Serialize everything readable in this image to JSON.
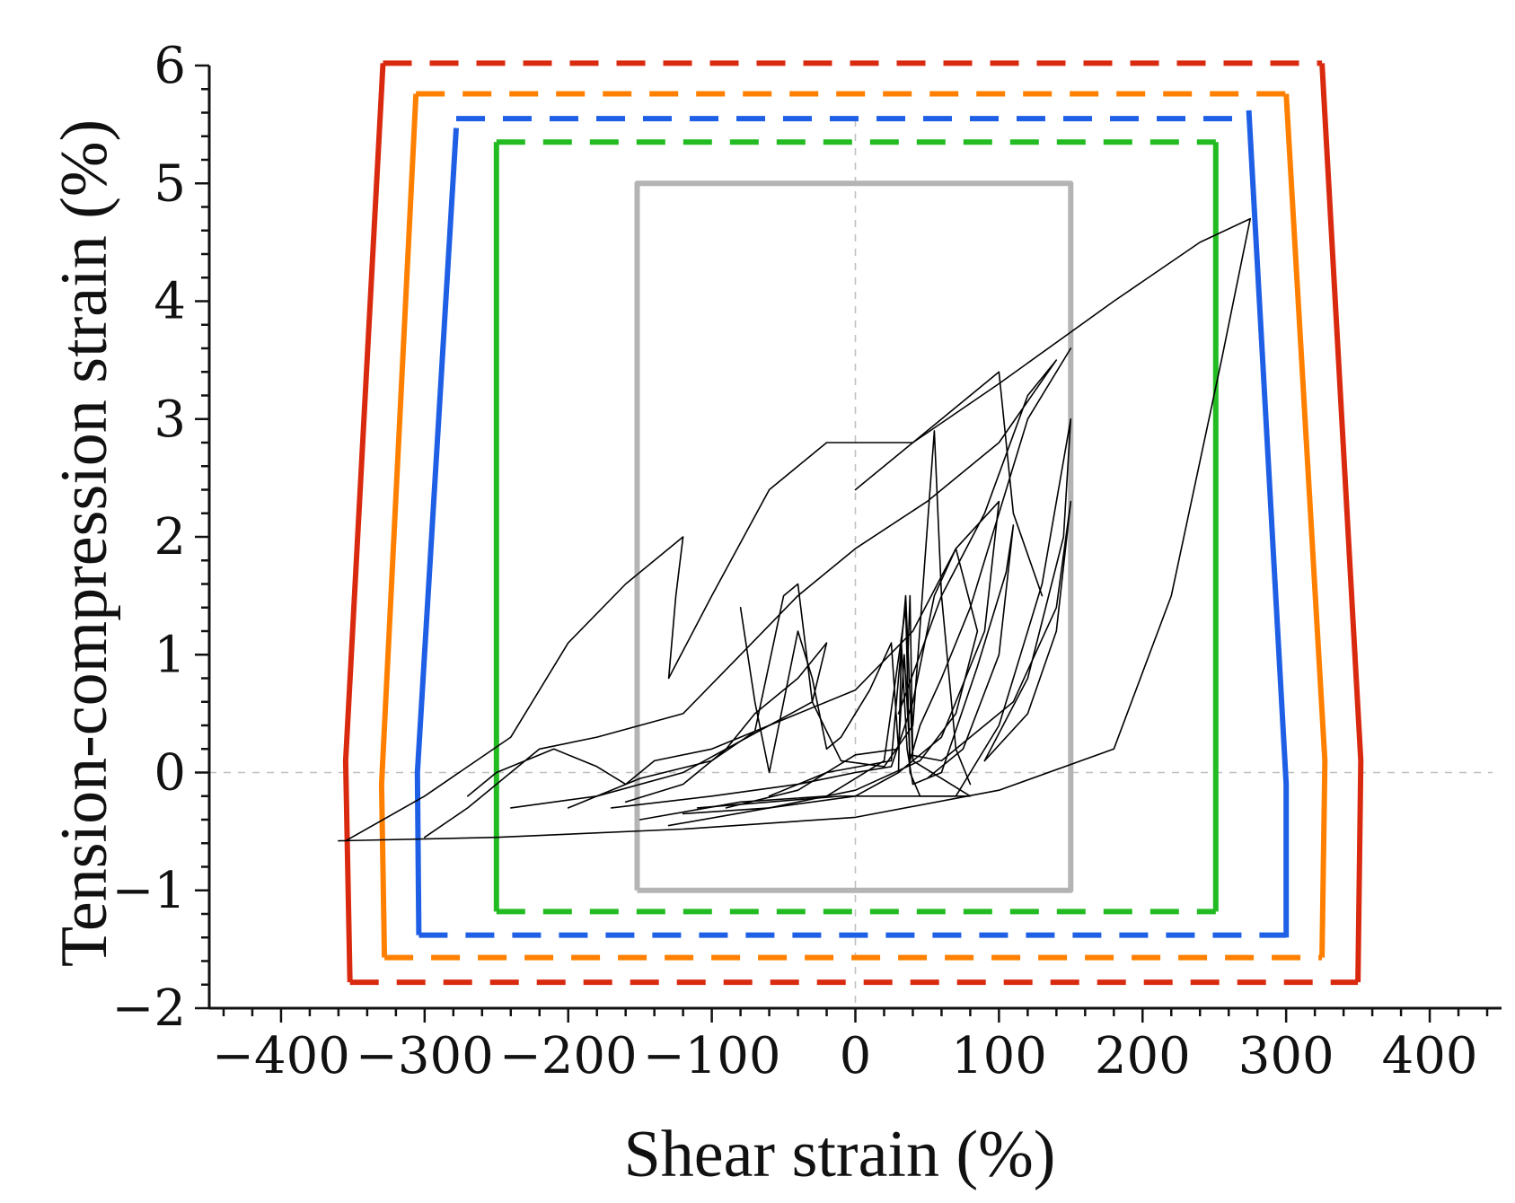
{
  "chart_data": {
    "type": "line",
    "title": "",
    "xlabel": "Shear strain (%)",
    "ylabel": "Tension-compression strain (%)",
    "xlim": [
      -450,
      450
    ],
    "ylim": [
      -2,
      6
    ],
    "grid": false,
    "x_ticks": [
      -400,
      -300,
      -200,
      -100,
      0,
      100,
      200,
      300,
      400
    ],
    "x_tick_labels": [
      "−400",
      "−300",
      "−200",
      "−100",
      "0",
      "100",
      "200",
      "300",
      "400"
    ],
    "y_ticks": [
      -2,
      -1,
      0,
      1,
      2,
      3,
      4,
      5,
      6
    ],
    "y_tick_labels": [
      "−2",
      "−1",
      "0",
      "1",
      "2",
      "3",
      "4",
      "5",
      "6"
    ],
    "reference_lines": [
      {
        "orientation": "vertical",
        "value": 0,
        "style": "dashed",
        "color": "#c0c0c0"
      },
      {
        "orientation": "horizontal",
        "value": 0,
        "style": "dashed",
        "color": "#c0c0c0"
      }
    ],
    "series": [
      {
        "name": "boundary-red",
        "color": "#d92a10",
        "solid_segments": [
          [
            [
              -352,
              -1.78
            ],
            [
              -355,
              0.1
            ],
            [
              -329,
              6.02
            ]
          ],
          [
            [
              325,
              6.02
            ],
            [
              352,
              0.1
            ],
            [
              350,
              -1.78
            ]
          ]
        ],
        "dashed_segments": [
          [
            [
              -329,
              6.02
            ],
            [
              325,
              6.02
            ]
          ],
          [
            [
              -352,
              -1.78
            ],
            [
              350,
              -1.78
            ]
          ]
        ]
      },
      {
        "name": "boundary-orange",
        "color": "#ff8000",
        "solid_segments": [
          [
            [
              -328,
              -1.57
            ],
            [
              -330,
              -0.1
            ],
            [
              -306,
              5.76
            ]
          ],
          [
            [
              300,
              5.76
            ],
            [
              327,
              0.1
            ],
            [
              325,
              -1.57
            ]
          ]
        ],
        "dashed_segments": [
          [
            [
              -306,
              5.76
            ],
            [
              300,
              5.76
            ]
          ],
          [
            [
              -328,
              -1.57
            ],
            [
              325,
              -1.57
            ]
          ]
        ]
      },
      {
        "name": "boundary-blue",
        "color": "#1f5fe6",
        "solid_segments": [
          [
            [
              -304,
              -1.38
            ],
            [
              -305,
              0
            ],
            [
              -278,
              5.47
            ]
          ],
          [
            [
              274,
              5.62
            ],
            [
              300,
              -0.1
            ],
            [
              300,
              -1.4
            ]
          ]
        ],
        "dashed_segments": [
          [
            [
              -278,
              5.55
            ],
            [
              274,
              5.55
            ]
          ],
          [
            [
              -304,
              -1.38
            ],
            [
              300,
              -1.38
            ]
          ]
        ]
      },
      {
        "name": "boundary-green",
        "color": "#22bb22",
        "solid_segments": [
          [
            [
              -250,
              -1.18
            ],
            [
              -250,
              5.35
            ]
          ],
          [
            [
              251,
              5.35
            ],
            [
              251,
              -1.18
            ]
          ]
        ],
        "dashed_segments": [
          [
            [
              -250,
              5.35
            ],
            [
              251,
              5.35
            ]
          ],
          [
            [
              -250,
              -1.18
            ],
            [
              251,
              -1.18
            ]
          ]
        ]
      },
      {
        "name": "boundary-gray",
        "color": "#b4b4b4",
        "solid_segments": [
          [
            [
              -152,
              -1.0
            ],
            [
              -152,
              5.0
            ],
            [
              150,
              5.0
            ],
            [
              150,
              -1.0
            ],
            [
              -152,
              -1.0
            ]
          ]
        ],
        "dashed_segments": []
      },
      {
        "name": "hysteresis-response",
        "color": "#000000",
        "solid_segments": [
          [
            [
              -360,
              -0.58
            ],
            [
              -250,
              -0.55
            ],
            [
              -120,
              -0.48
            ],
            [
              0,
              -0.38
            ],
            [
              100,
              -0.15
            ],
            [
              180,
              0.2
            ],
            [
              220,
              1.5
            ],
            [
              255,
              3.5
            ],
            [
              275,
              4.7
            ],
            [
              240,
              4.5
            ],
            [
              180,
              4.0
            ],
            [
              100,
              3.3
            ],
            [
              40,
              2.8
            ],
            [
              0,
              2.4
            ]
          ],
          [
            [
              -355,
              -0.58
            ],
            [
              -300,
              -0.2
            ],
            [
              -240,
              0.3
            ],
            [
              -200,
              1.1
            ],
            [
              -160,
              1.6
            ],
            [
              -120,
              2.0
            ],
            [
              -125,
              1.5
            ],
            [
              -130,
              0.8
            ],
            [
              -100,
              1.5
            ],
            [
              -60,
              2.4
            ],
            [
              -20,
              2.8
            ],
            [
              40,
              2.8
            ],
            [
              80,
              3.2
            ],
            [
              100,
              3.4
            ],
            [
              110,
              2.2
            ],
            [
              130,
              1.5
            ]
          ],
          [
            [
              -300,
              -0.55
            ],
            [
              -270,
              -0.3
            ],
            [
              -220,
              0.2
            ],
            [
              -180,
              0.3
            ],
            [
              -120,
              0.5
            ],
            [
              -80,
              1.0
            ],
            [
              -40,
              1.5
            ],
            [
              0,
              1.9
            ],
            [
              50,
              2.3
            ],
            [
              100,
              2.8
            ],
            [
              140,
              3.5
            ],
            [
              120,
              3.2
            ],
            [
              90,
              2.2
            ],
            [
              60,
              1.5
            ],
            [
              30,
              0.5
            ]
          ],
          [
            [
              -240,
              -0.3
            ],
            [
              -180,
              -0.2
            ],
            [
              -120,
              0.0
            ],
            [
              -60,
              0.4
            ],
            [
              0,
              0.7
            ],
            [
              40,
              1.2
            ],
            [
              70,
              1.9
            ],
            [
              100,
              2.3
            ],
            [
              90,
              1.2
            ],
            [
              60,
              0.3
            ],
            [
              30,
              0.0
            ]
          ],
          [
            [
              -200,
              -0.3
            ],
            [
              -150,
              -0.05
            ],
            [
              -100,
              0.1
            ],
            [
              -70,
              0.35
            ],
            [
              -50,
              1.5
            ],
            [
              -40,
              1.6
            ],
            [
              -30,
              0.6
            ],
            [
              -10,
              0.1
            ],
            [
              20,
              0.05
            ],
            [
              40,
              0.4
            ],
            [
              55,
              2.9
            ],
            [
              60,
              1.5
            ],
            [
              70,
              0.2
            ],
            [
              80,
              -0.1
            ]
          ],
          [
            [
              -150,
              -0.4
            ],
            [
              -80,
              -0.25
            ],
            [
              -20,
              -0.2
            ],
            [
              20,
              0.1
            ],
            [
              35,
              1.4
            ],
            [
              38,
              0.0
            ],
            [
              45,
              -0.2
            ],
            [
              70,
              -0.2
            ],
            [
              100,
              0.4
            ],
            [
              130,
              1.6
            ],
            [
              150,
              3.0
            ],
            [
              145,
              2.0
            ],
            [
              120,
              0.8
            ],
            [
              90,
              0.1
            ]
          ],
          [
            [
              -130,
              -0.45
            ],
            [
              -60,
              -0.3
            ],
            [
              0,
              -0.2
            ],
            [
              30,
              0.0
            ],
            [
              32,
              1.1
            ],
            [
              36,
              0.2
            ],
            [
              40,
              -0.1
            ],
            [
              60,
              0.0
            ],
            [
              85,
              0.9
            ],
            [
              105,
              1.7
            ],
            [
              110,
              2.1
            ],
            [
              100,
              1.0
            ],
            [
              75,
              0.2
            ],
            [
              50,
              -0.05
            ]
          ],
          [
            [
              -170,
              -0.3
            ],
            [
              -100,
              -0.2
            ],
            [
              -40,
              -0.1
            ],
            [
              0,
              0.0
            ],
            [
              25,
              0.05
            ],
            [
              40,
              0.6
            ],
            [
              55,
              1.5
            ],
            [
              70,
              1.9
            ],
            [
              85,
              1.2
            ],
            [
              70,
              0.5
            ],
            [
              45,
              0.1
            ],
            [
              0,
              -0.15
            ],
            [
              -60,
              -0.3
            ],
            [
              -120,
              -0.35
            ]
          ],
          [
            [
              -90,
              -0.3
            ],
            [
              -40,
              -0.15
            ],
            [
              0,
              0.15
            ],
            [
              30,
              0.2
            ],
            [
              34,
              1.0
            ],
            [
              38,
              0.15
            ],
            [
              60,
              0.1
            ],
            [
              110,
              0.6
            ],
            [
              140,
              1.4
            ],
            [
              150,
              2.3
            ],
            [
              140,
              1.2
            ],
            [
              120,
              0.5
            ],
            [
              90,
              0.1
            ]
          ],
          [
            [
              -60,
              -0.2
            ],
            [
              -20,
              0.0
            ],
            [
              25,
              0.1
            ],
            [
              35,
              1.5
            ],
            [
              40,
              0.1
            ],
            [
              80,
              -0.2
            ],
            [
              40,
              -0.2
            ],
            [
              -10,
              -0.2
            ],
            [
              -60,
              -0.25
            ],
            [
              -110,
              -0.3
            ]
          ],
          [
            [
              -270,
              -0.2
            ],
            [
              -250,
              0.0
            ],
            [
              -210,
              0.2
            ],
            [
              -180,
              0.05
            ],
            [
              -160,
              -0.1
            ],
            [
              -140,
              0.1
            ],
            [
              -100,
              0.2
            ],
            [
              -60,
              0.4
            ],
            [
              -30,
              0.6
            ],
            [
              -20,
              1.1
            ],
            [
              -40,
              0.8
            ],
            [
              -70,
              0.5
            ],
            [
              -90,
              0.2
            ],
            [
              -120,
              -0.1
            ],
            [
              -160,
              -0.25
            ]
          ],
          [
            [
              -80,
              1.4
            ],
            [
              -70,
              0.6
            ],
            [
              -60,
              0.0
            ],
            [
              -50,
              0.6
            ],
            [
              -40,
              1.2
            ],
            [
              -30,
              0.8
            ],
            [
              -20,
              0.2
            ],
            [
              -10,
              0.3
            ],
            [
              10,
              0.7
            ],
            [
              25,
              1.1
            ],
            [
              30,
              0.2
            ]
          ],
          [
            [
              150,
              3.6
            ],
            [
              120,
              3.0
            ],
            [
              100,
              2.2
            ],
            [
              80,
              1.4
            ],
            [
              60,
              0.8
            ],
            [
              45,
              0.4
            ],
            [
              38,
              0.1
            ],
            [
              36,
              0.8
            ],
            [
              38,
              1.5
            ],
            [
              40,
              0.1
            ]
          ]
        ]
      }
    ]
  }
}
